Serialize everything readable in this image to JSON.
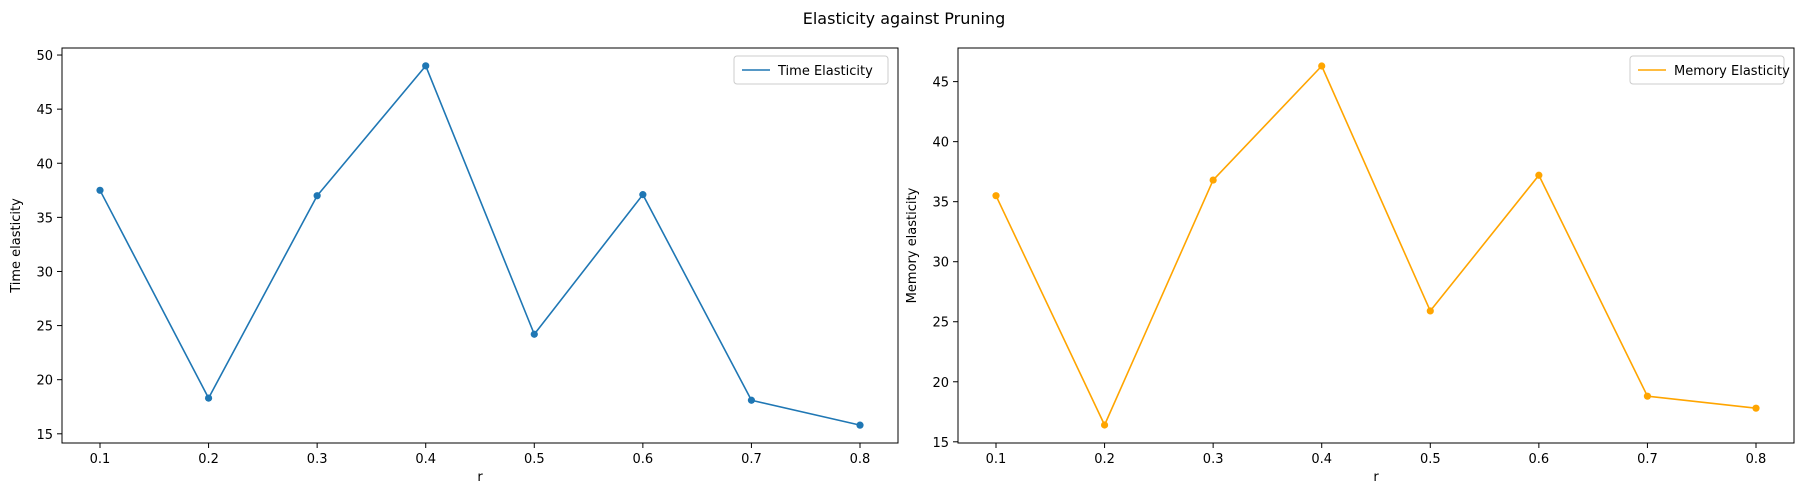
{
  "figure": {
    "suptitle": "Elasticity against Pruning"
  },
  "chart_data": [
    {
      "type": "line",
      "title": "",
      "xlabel": "r",
      "ylabel": "Time elasticity",
      "x": [
        0.1,
        0.2,
        0.3,
        0.4,
        0.5,
        0.6,
        0.7,
        0.8
      ],
      "series": [
        {
          "name": "Time Elasticity",
          "values": [
            37.5,
            18.3,
            37.0,
            49.0,
            24.2,
            37.1,
            18.1,
            15.8
          ],
          "color": "#1f77b4",
          "marker": "circle"
        }
      ],
      "xticks": [
        "0.1",
        "0.2",
        "0.3",
        "0.4",
        "0.5",
        "0.6",
        "0.7",
        "0.8"
      ],
      "yticks": [
        15,
        20,
        25,
        30,
        35,
        40,
        45,
        50
      ],
      "xlim": [
        0.065,
        0.835
      ],
      "ylim": [
        14.15,
        50.65
      ],
      "grid": false,
      "legend_position": "top-right"
    },
    {
      "type": "line",
      "title": "",
      "xlabel": "r",
      "ylabel": "Memory elasticity",
      "x": [
        0.1,
        0.2,
        0.3,
        0.4,
        0.5,
        0.6,
        0.7,
        0.8
      ],
      "series": [
        {
          "name": "Memory Elasticity",
          "values": [
            35.5,
            16.4,
            36.8,
            46.3,
            25.9,
            37.2,
            18.8,
            17.8
          ],
          "color": "#ffa500",
          "marker": "circle"
        }
      ],
      "xticks": [
        "0.1",
        "0.2",
        "0.3",
        "0.4",
        "0.5",
        "0.6",
        "0.7",
        "0.8"
      ],
      "yticks": [
        15,
        20,
        25,
        30,
        35,
        40,
        45
      ],
      "xlim": [
        0.065,
        0.835
      ],
      "ylim": [
        14.9,
        47.8
      ],
      "grid": false,
      "legend_position": "top-right"
    }
  ]
}
